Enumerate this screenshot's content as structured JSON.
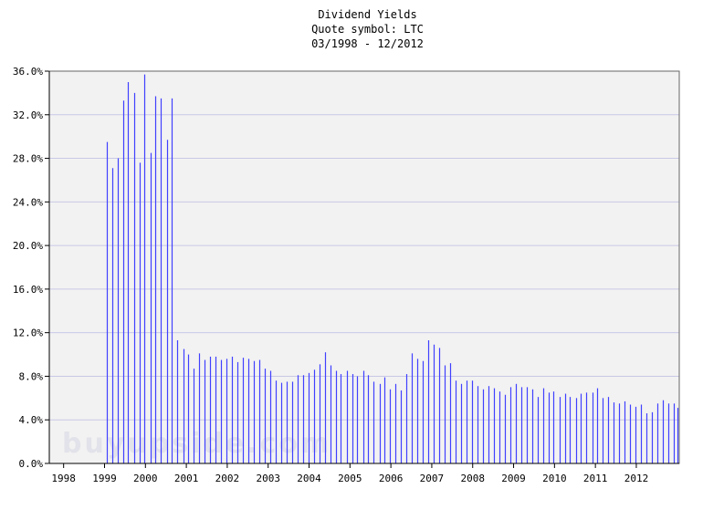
{
  "chart_data": {
    "type": "bar",
    "title": "Dividend Yields",
    "subtitle": "Quote symbol: LTC",
    "date_range": "03/1998 - 12/2012",
    "xlabel": "",
    "ylabel": "",
    "ylim": [
      0,
      36
    ],
    "y_ticks": [
      "0.0%",
      "4.0%",
      "8.0%",
      "12.0%",
      "16.0%",
      "20.0%",
      "24.0%",
      "28.0%",
      "32.0%",
      "36.0%"
    ],
    "x_ticks": [
      "1998",
      "1999",
      "2000",
      "2001",
      "2002",
      "2003",
      "2004",
      "2005",
      "2006",
      "2007",
      "2008",
      "2009",
      "2010",
      "2011",
      "2012"
    ],
    "x_range": [
      1997.65,
      2013.05
    ],
    "grid": true,
    "watermark": "buyupside.com",
    "series": [
      {
        "values": [
          [
            1999.05,
            29.5
          ],
          [
            1999.18,
            27.1
          ],
          [
            1999.32,
            28.0
          ],
          [
            1999.45,
            33.3
          ],
          [
            1999.58,
            35.0
          ],
          [
            1999.72,
            34.0
          ],
          [
            1999.85,
            27.6
          ],
          [
            1999.98,
            35.7
          ],
          [
            2000.12,
            28.5
          ],
          [
            2000.25,
            33.7
          ],
          [
            2000.38,
            33.5
          ],
          [
            2000.52,
            29.7
          ],
          [
            2000.65,
            33.5
          ],
          [
            2000.78,
            11.3
          ],
          [
            2000.92,
            10.5
          ],
          [
            2001.05,
            10.0
          ],
          [
            2001.18,
            8.7
          ],
          [
            2001.32,
            10.1
          ],
          [
            2001.45,
            9.5
          ],
          [
            2001.58,
            9.8
          ],
          [
            2001.72,
            9.8
          ],
          [
            2001.85,
            9.5
          ],
          [
            2001.98,
            9.6
          ],
          [
            2002.12,
            9.8
          ],
          [
            2002.25,
            9.3
          ],
          [
            2002.38,
            9.7
          ],
          [
            2002.52,
            9.6
          ],
          [
            2002.65,
            9.4
          ],
          [
            2002.78,
            9.5
          ],
          [
            2002.92,
            8.7
          ],
          [
            2003.05,
            8.5
          ],
          [
            2003.18,
            7.6
          ],
          [
            2003.32,
            7.4
          ],
          [
            2003.45,
            7.5
          ],
          [
            2003.58,
            7.5
          ],
          [
            2003.72,
            8.1
          ],
          [
            2003.85,
            8.1
          ],
          [
            2003.98,
            8.3
          ],
          [
            2004.12,
            8.6
          ],
          [
            2004.25,
            9.1
          ],
          [
            2004.38,
            10.2
          ],
          [
            2004.52,
            9.0
          ],
          [
            2004.65,
            8.5
          ],
          [
            2004.78,
            8.2
          ],
          [
            2004.92,
            8.5
          ],
          [
            2005.05,
            8.2
          ],
          [
            2005.18,
            8.0
          ],
          [
            2005.32,
            8.5
          ],
          [
            2005.45,
            8.1
          ],
          [
            2005.58,
            7.5
          ],
          [
            2005.72,
            7.3
          ],
          [
            2005.85,
            7.9
          ],
          [
            2005.98,
            6.8
          ],
          [
            2006.12,
            7.3
          ],
          [
            2006.25,
            6.7
          ],
          [
            2006.38,
            8.2
          ],
          [
            2006.52,
            10.1
          ],
          [
            2006.65,
            9.6
          ],
          [
            2006.78,
            9.4
          ],
          [
            2006.92,
            11.3
          ],
          [
            2007.05,
            10.9
          ],
          [
            2007.18,
            10.6
          ],
          [
            2007.32,
            9.0
          ],
          [
            2007.45,
            9.2
          ],
          [
            2007.58,
            7.6
          ],
          [
            2007.72,
            7.3
          ],
          [
            2007.85,
            7.6
          ],
          [
            2007.98,
            7.6
          ],
          [
            2008.12,
            7.1
          ],
          [
            2008.25,
            6.8
          ],
          [
            2008.38,
            7.1
          ],
          [
            2008.52,
            6.9
          ],
          [
            2008.65,
            6.6
          ],
          [
            2008.78,
            6.3
          ],
          [
            2008.92,
            7.0
          ],
          [
            2009.05,
            7.3
          ],
          [
            2009.18,
            7.0
          ],
          [
            2009.32,
            7.0
          ],
          [
            2009.45,
            6.8
          ],
          [
            2009.58,
            6.1
          ],
          [
            2009.72,
            6.9
          ],
          [
            2009.85,
            6.5
          ],
          [
            2009.98,
            6.6
          ],
          [
            2010.12,
            6.1
          ],
          [
            2010.25,
            6.4
          ],
          [
            2010.38,
            6.1
          ],
          [
            2010.52,
            6.0
          ],
          [
            2010.65,
            6.4
          ],
          [
            2010.78,
            6.5
          ],
          [
            2010.92,
            6.5
          ],
          [
            2011.05,
            6.9
          ],
          [
            2011.18,
            6.0
          ],
          [
            2011.32,
            6.1
          ],
          [
            2011.45,
            5.6
          ],
          [
            2011.58,
            5.5
          ],
          [
            2011.72,
            5.7
          ],
          [
            2011.85,
            5.4
          ],
          [
            2011.98,
            5.2
          ],
          [
            2012.12,
            5.4
          ],
          [
            2012.25,
            4.6
          ],
          [
            2012.38,
            4.7
          ],
          [
            2012.52,
            5.5
          ],
          [
            2012.65,
            5.8
          ],
          [
            2012.78,
            5.5
          ],
          [
            2012.92,
            5.5
          ],
          [
            2013.0,
            5.1
          ]
        ]
      }
    ]
  },
  "colors": {
    "bar": "#4040ff",
    "plot_bg": "#f2f2f2",
    "grid": "#c8c8e6",
    "axis": "#000000",
    "watermark": "#e2e2ea"
  }
}
